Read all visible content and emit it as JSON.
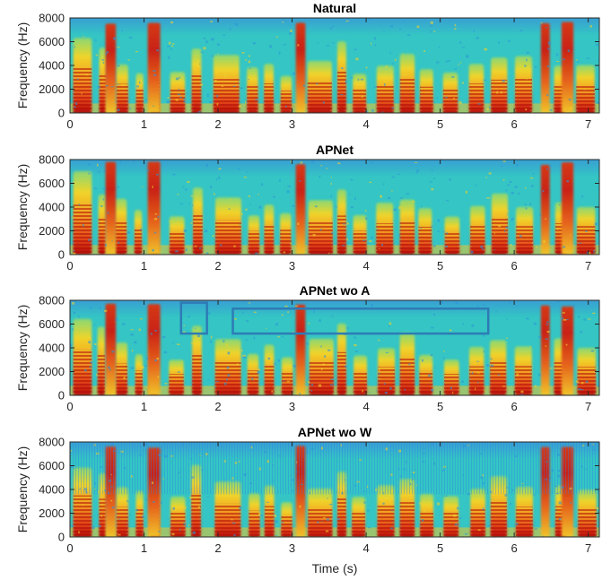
{
  "chart_data": [
    {
      "type": "heatmap",
      "title": "Natural",
      "ylabel": "Frequency (Hz)",
      "xlabel": "",
      "xlim": [
        0,
        7.15
      ],
      "ylim": [
        0,
        8000
      ],
      "xticks": [
        "0",
        "1",
        "2",
        "3",
        "4",
        "5",
        "6",
        "7"
      ],
      "yticks": [
        "0",
        "2000",
        "4000",
        "6000",
        "8000"
      ],
      "annotations": []
    },
    {
      "type": "heatmap",
      "title": "APNet",
      "ylabel": "Frequency (Hz)",
      "xlabel": "",
      "xlim": [
        0,
        7.15
      ],
      "ylim": [
        0,
        8000
      ],
      "xticks": [
        "0",
        "1",
        "2",
        "3",
        "4",
        "5",
        "6",
        "7"
      ],
      "yticks": [
        "0",
        "2000",
        "4000",
        "6000",
        "8000"
      ],
      "annotations": []
    },
    {
      "type": "heatmap",
      "title": "APNet wo A",
      "ylabel": "Frequency (Hz)",
      "xlabel": "",
      "xlim": [
        0,
        7.15
      ],
      "ylim": [
        0,
        8000
      ],
      "xticks": [
        "0",
        "1",
        "2",
        "3",
        "4",
        "5",
        "6",
        "7"
      ],
      "yticks": [
        "0",
        "2000",
        "4000",
        "6000",
        "8000"
      ],
      "annotations": [
        {
          "shape": "rectangle",
          "x0": 1.5,
          "x1": 1.85,
          "y0": 5200,
          "y1": 7800,
          "color": "#2e7bb6"
        },
        {
          "shape": "rectangle",
          "x0": 2.2,
          "x1": 5.65,
          "y0": 5200,
          "y1": 7300,
          "color": "#2e7bb6"
        }
      ]
    },
    {
      "type": "heatmap",
      "title": "APNet wo W",
      "ylabel": "Frequency (Hz)",
      "xlabel": "Time (s)",
      "xlim": [
        0,
        7.15
      ],
      "ylim": [
        0,
        8000
      ],
      "xticks": [
        "0",
        "1",
        "2",
        "3",
        "4",
        "5",
        "6",
        "7"
      ],
      "yticks": [
        "0",
        "2000",
        "4000",
        "6000",
        "8000"
      ],
      "annotations": []
    }
  ],
  "colors": {
    "background": "#34c5c4",
    "low": "#3a8fe0",
    "mid": "#f2e12b",
    "high": "#d81d12",
    "peak": "#a10505",
    "annotation": "#2e7bb6"
  }
}
